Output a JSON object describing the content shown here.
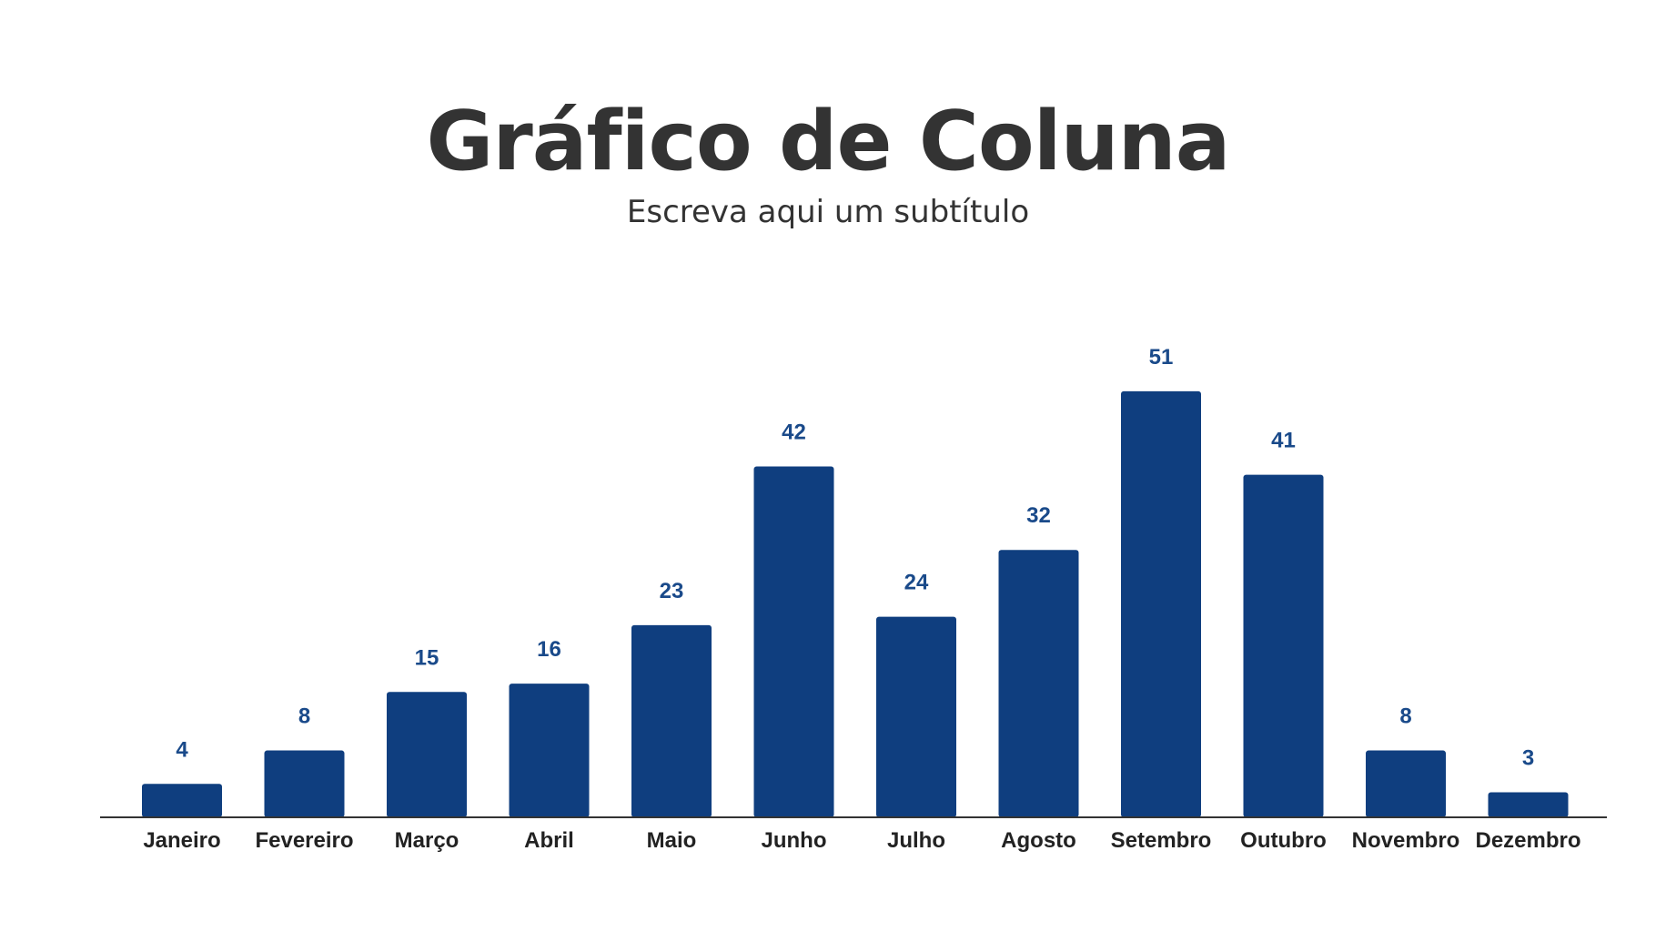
{
  "header": {
    "title": "Gráfico de Coluna",
    "subtitle": "Escreva aqui um subtítulo"
  },
  "colors": {
    "bar": "#0f3e7f",
    "value_label": "#1a4a8a",
    "category_label": "#222222",
    "axis": "#333333",
    "title": "#333333"
  },
  "chart_data": {
    "type": "bar",
    "title": "Gráfico de Coluna",
    "subtitle": "Escreva aqui um subtítulo",
    "categories": [
      "Janeiro",
      "Fevereiro",
      "Março",
      "Abril",
      "Maio",
      "Junho",
      "Julho",
      "Agosto",
      "Setembro",
      "Outubro",
      "Novembro",
      "Dezembro"
    ],
    "values": [
      4,
      8,
      15,
      16,
      23,
      42,
      24,
      32,
      51,
      41,
      8,
      3
    ],
    "xlabel": "",
    "ylabel": "",
    "ylim": [
      0,
      51
    ],
    "grid": false,
    "legend": "none",
    "data_labels": true
  }
}
